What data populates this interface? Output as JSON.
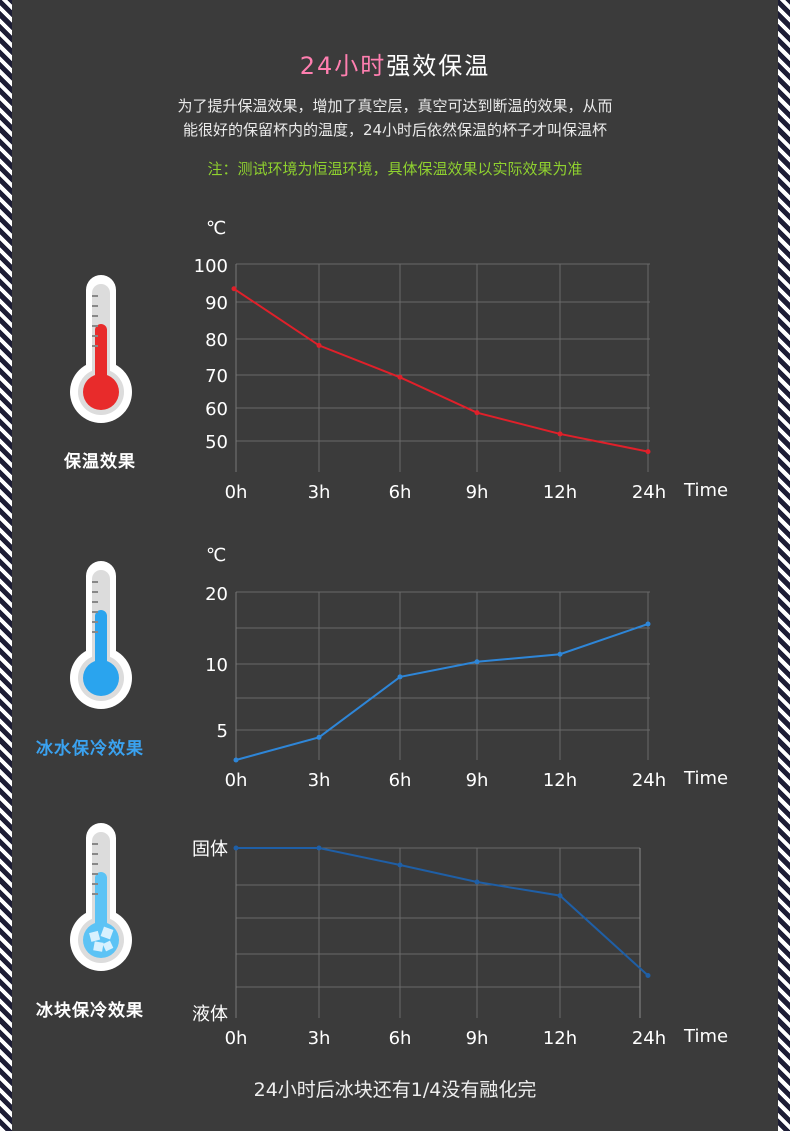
{
  "header": {
    "title_highlight": "24小时",
    "title_rest": "强效保温",
    "intro_line1": "为了提升保温效果，增加了真空层，真空可达到断温的效果，从而",
    "intro_line2": "能很好的保留杯内的温度，24小时后依然保温的杯子才叫保温杯",
    "note": "注：测试环境为恒温环境，具体保温效果以实际效果为准"
  },
  "captions": {
    "hot": "保温效果",
    "cold": "冰水保冷效果",
    "ice": "冰块保冷效果"
  },
  "colors": {
    "background": "#3b3b3b",
    "hot_line": "#e0202a",
    "cold_line": "#2e86d8",
    "ice_line": "#1f5fa6",
    "note_green": "#8fd12f",
    "title_pink": "#ff7fb0",
    "caption_blue": "#3aa2f0"
  },
  "footer": "24小时后冰块还有1/4没有融化完",
  "chart_data": [
    {
      "type": "line",
      "ylabel": "℃",
      "xlabel": "Time",
      "categories": [
        "0h",
        "3h",
        "6h",
        "9h",
        "12h",
        "24h"
      ],
      "yticks": [
        100,
        90,
        80,
        70,
        60,
        50
      ],
      "ylim": [
        40,
        100
      ],
      "series": [
        {
          "values": [
            93,
            77,
            68,
            58,
            52,
            47
          ]
        }
      ],
      "grid": true
    },
    {
      "type": "line",
      "ylabel": "℃",
      "xlabel": "Time",
      "categories": [
        "0h",
        "3h",
        "6h",
        "9h",
        "12h",
        "24h"
      ],
      "yticks": [
        20,
        10,
        5
      ],
      "ylim": [
        0,
        20
      ],
      "series": [
        {
          "values": [
            0,
            3,
            11,
            13,
            14,
            18
          ]
        }
      ],
      "grid": true
    },
    {
      "type": "line",
      "xlabel": "Time",
      "categories": [
        "0h",
        "3h",
        "6h",
        "9h",
        "12h",
        "24h"
      ],
      "ytick_labels": [
        "固体",
        "液体"
      ],
      "ylim": [
        0,
        1
      ],
      "series": [
        {
          "values": [
            1,
            1,
            0.9,
            0.8,
            0.72,
            0.25
          ]
        }
      ],
      "grid": true
    }
  ]
}
